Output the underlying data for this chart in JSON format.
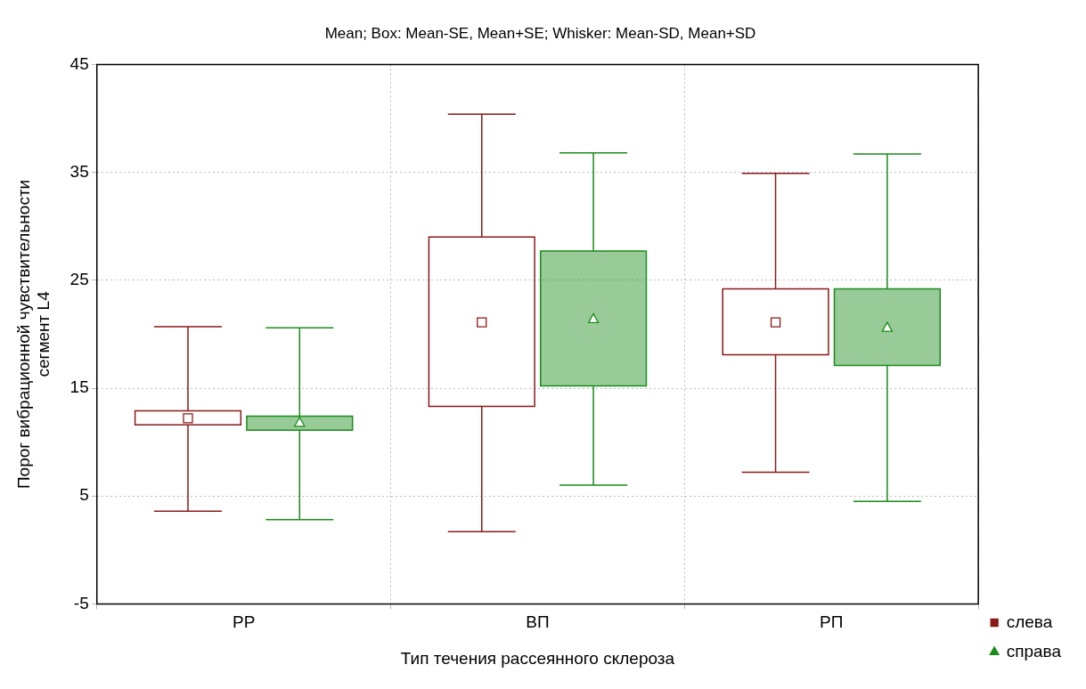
{
  "chart_data": {
    "type": "box",
    "title": "Mean; Box: Mean-SE, Mean+SE; Whisker: Mean-SD, Mean+SD",
    "xlabel": "Тип течения рассеянного склероза",
    "ylabel": "Порог вибрационной чувствительности сегмент L4",
    "categories": [
      "РР",
      "ВП",
      "РП"
    ],
    "ylim": [
      -5,
      45
    ],
    "yticks": [
      -5,
      5,
      15,
      25,
      35,
      45
    ],
    "grid": true,
    "legend": "bottom right",
    "series": [
      {
        "name": "слева",
        "color": "#8b1a1a",
        "marker": "square",
        "boxes": [
          {
            "low": 3.6,
            "q1": 11.6,
            "mean": 12.2,
            "q3": 12.9,
            "high": 20.7
          },
          {
            "low": 1.7,
            "q1": 13.3,
            "mean": 21.1,
            "q3": 29.0,
            "high": 40.4
          },
          {
            "low": 7.2,
            "q1": 18.1,
            "mean": 21.1,
            "q3": 24.2,
            "high": 34.9
          }
        ]
      },
      {
        "name": "справа",
        "color": "#1a8c1a",
        "marker": "triangle",
        "boxes": [
          {
            "low": 2.8,
            "q1": 11.1,
            "mean": 11.8,
            "q3": 12.4,
            "high": 20.6
          },
          {
            "low": 6.0,
            "q1": 15.2,
            "mean": 21.4,
            "q3": 27.7,
            "high": 36.8
          },
          {
            "low": 4.5,
            "q1": 17.1,
            "mean": 20.6,
            "q3": 24.2,
            "high": 36.7
          }
        ]
      }
    ]
  }
}
